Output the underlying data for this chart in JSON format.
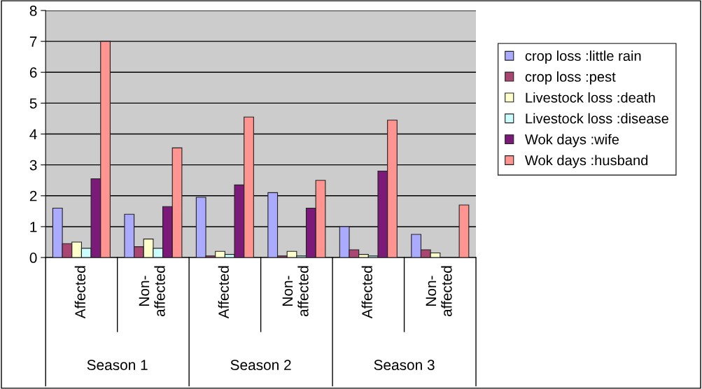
{
  "chart_data": {
    "type": "bar",
    "categories": [
      "Affected",
      "Non-\naffected",
      "Affected",
      "Non-\naffected",
      "Affected",
      "Non-\naffected"
    ],
    "annotations": [
      "Season 1",
      "Season 2",
      "Season 3"
    ],
    "series": [
      {
        "name": "crop loss :little rain",
        "color": "#aaaaff",
        "values": [
          1.6,
          1.4,
          1.95,
          2.1,
          1.0,
          0.75
        ]
      },
      {
        "name": "crop loss :pest",
        "color": "#a94672",
        "values": [
          0.45,
          0.35,
          0.05,
          0.05,
          0.25,
          0.25
        ]
      },
      {
        "name": "Livestock loss :death",
        "color": "#ffffcc",
        "values": [
          0.5,
          0.6,
          0.2,
          0.2,
          0.1,
          0.15
        ]
      },
      {
        "name": "Livestock loss :disease",
        "color": "#ccffff",
        "values": [
          0.3,
          0.3,
          0.1,
          0.05,
          0.05,
          null
        ]
      },
      {
        "name": "Wok days :wife",
        "color": "#7b1a78",
        "values": [
          2.55,
          1.65,
          2.35,
          1.6,
          2.8,
          null
        ]
      },
      {
        "name": "Wok days :husband",
        "color": "#ff9490",
        "values": [
          7.0,
          3.55,
          4.55,
          2.5,
          4.45,
          1.7
        ]
      }
    ],
    "ylim": [
      0,
      8
    ],
    "yticks": [
      0,
      1,
      2,
      3,
      4,
      5,
      6,
      7,
      8
    ],
    "grid": "y",
    "legend": "right"
  }
}
